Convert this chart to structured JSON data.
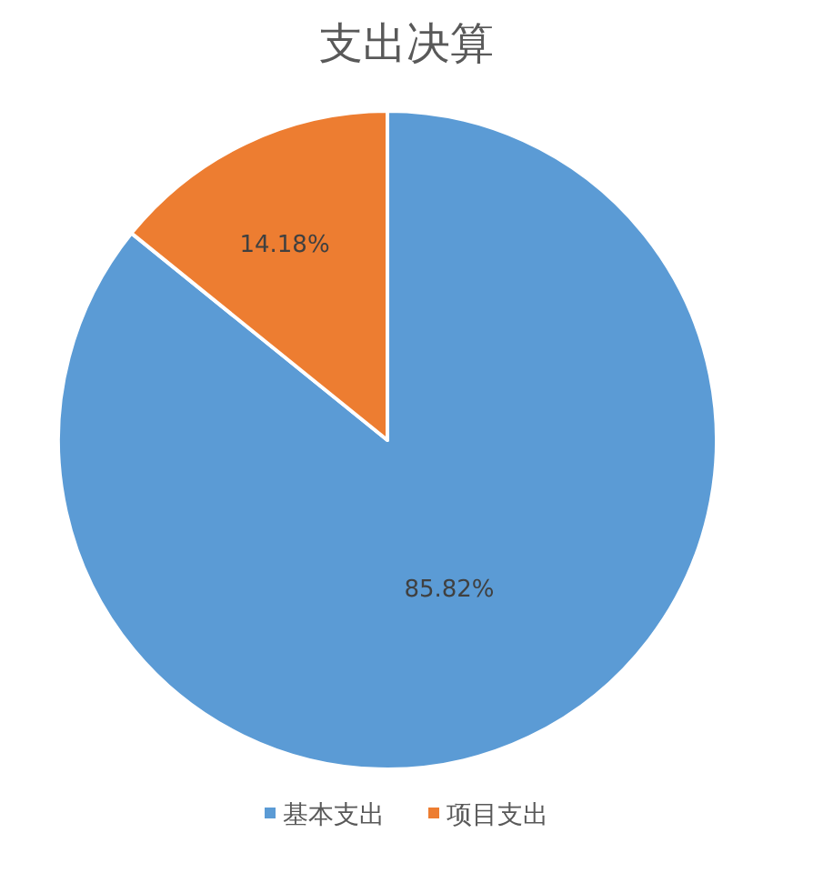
{
  "chart_data": {
    "type": "pie",
    "title": "支出决算",
    "categories": [
      "基本支出",
      "项目支出"
    ],
    "values": [
      85.82,
      14.18
    ],
    "colors": [
      "#5b9bd5",
      "#ed7d31"
    ],
    "value_labels": [
      "85.82%",
      "14.18%"
    ],
    "legend": "bottom"
  }
}
